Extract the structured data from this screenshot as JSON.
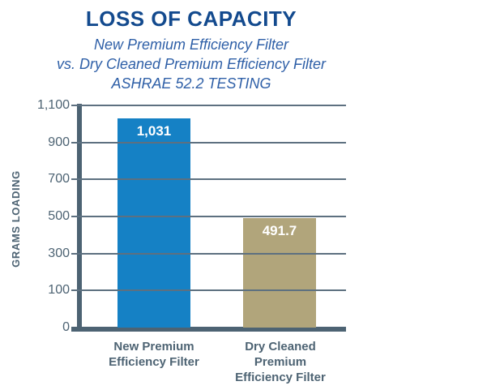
{
  "header": {
    "title": "LOSS OF CAPACITY",
    "subtitle_lines": [
      "New Premium Efficiency Filter",
      "vs. Dry Cleaned Premium Efficiency Filter",
      "ASHRAE 52.2 TESTING"
    ]
  },
  "chart_data": {
    "type": "bar",
    "title": "LOSS OF CAPACITY",
    "subtitle": "New Premium Efficiency Filter vs. Dry Cleaned Premium Efficiency Filter — ASHRAE 52.2 TESTING",
    "ylabel": "GRAMS LOADING",
    "xlabel": "",
    "categories": [
      "New Premium Efficiency Filter",
      "Dry Cleaned Premium Efficiency Filter"
    ],
    "category_label_lines": [
      [
        "New Premium",
        "Efficiency Filter"
      ],
      [
        "Dry Cleaned",
        "Premium",
        "Efficiency Filter"
      ]
    ],
    "values": [
      1031,
      491.7
    ],
    "value_labels": [
      "1,031",
      "491.7"
    ],
    "bar_colors": [
      "#1581c5",
      "#b1a57b"
    ],
    "yticks": [
      0,
      100,
      300,
      500,
      700,
      900,
      1100
    ],
    "ytick_labels": [
      "0",
      "100",
      "300",
      "500",
      "700",
      "900",
      "1,100"
    ],
    "ylim": [
      0,
      1100
    ],
    "grid": true,
    "gridlines_over_bars": true,
    "legend": false
  },
  "colors": {
    "title": "#134a8e",
    "subtitle": "#2e5fa7",
    "axis": "#4d6373",
    "gridline": "#5d7080",
    "tick_label": "#4d6373",
    "category_label": "#4d6373",
    "value_label": "#ffffff",
    "background": "#ffffff"
  }
}
